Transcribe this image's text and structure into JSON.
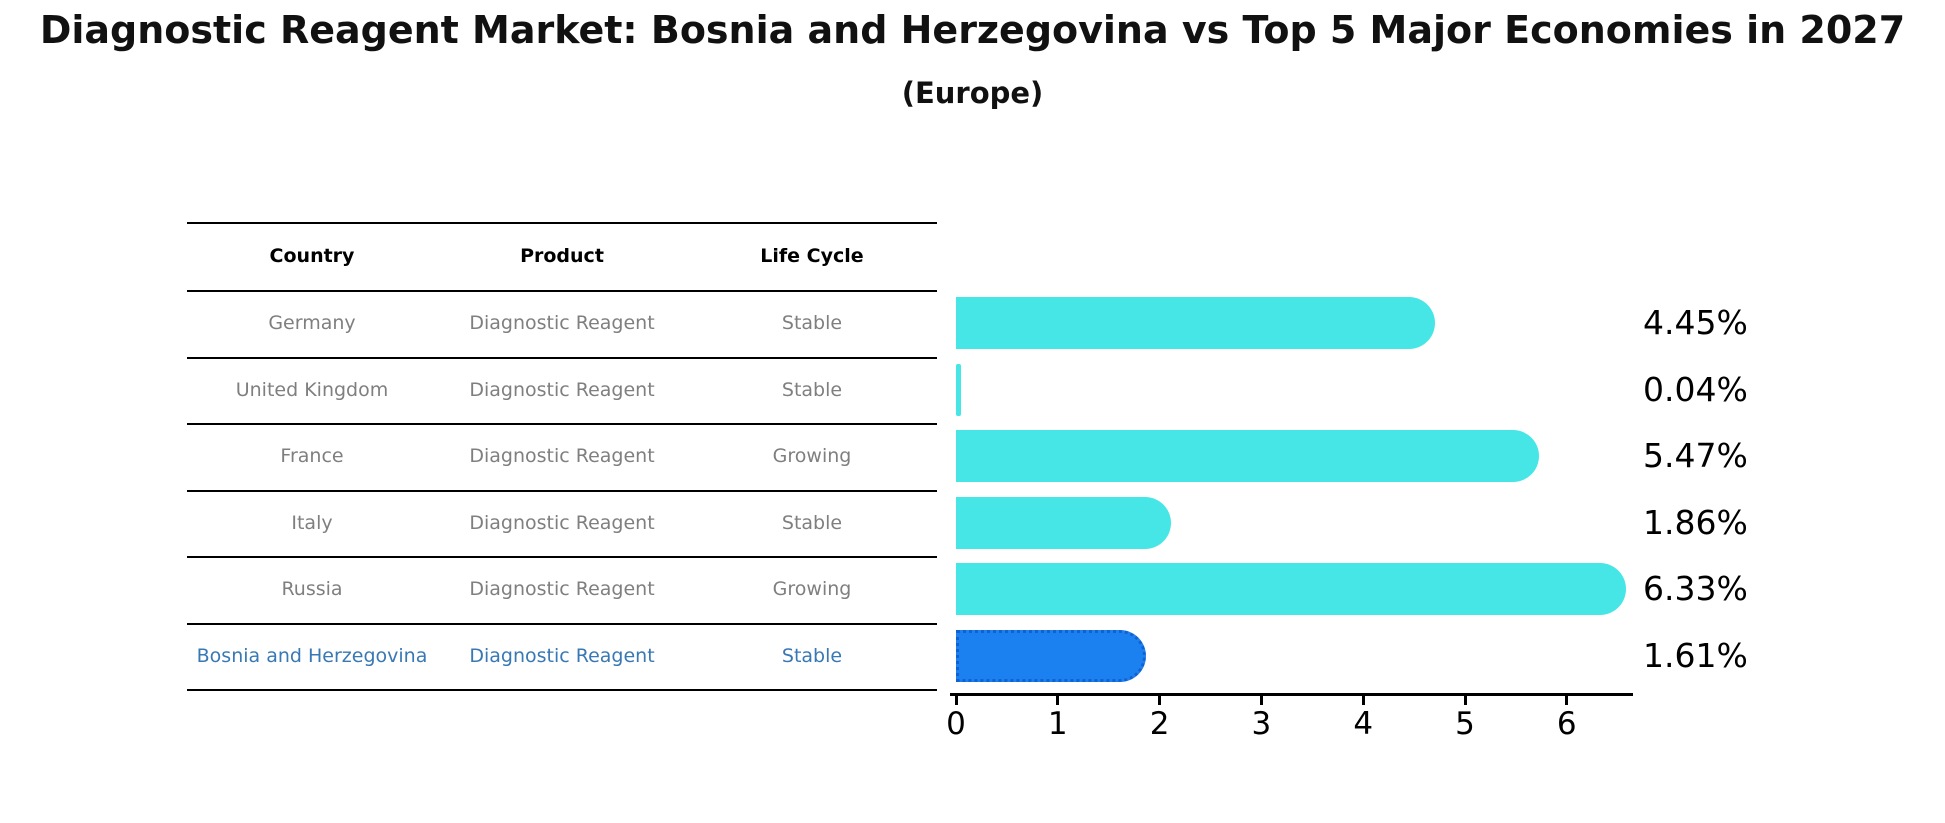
{
  "title": "Diagnostic Reagent Market: Bosnia and Herzegovina vs Top 5 Major Economies in 2027",
  "subtitle": "(Europe)",
  "table": {
    "headers": [
      "Country",
      "Product",
      "Life Cycle"
    ],
    "rows": [
      {
        "country": "Germany",
        "product": "Diagnostic Reagent",
        "life_cycle": "Stable",
        "highlight": false
      },
      {
        "country": "United Kingdom",
        "product": "Diagnostic Reagent",
        "life_cycle": "Stable",
        "highlight": false
      },
      {
        "country": "France",
        "product": "Diagnostic Reagent",
        "life_cycle": "Growing",
        "highlight": false
      },
      {
        "country": "Italy",
        "product": "Diagnostic Reagent",
        "life_cycle": "Stable",
        "highlight": false
      },
      {
        "country": "Russia",
        "product": "Diagnostic Reagent",
        "life_cycle": "Growing",
        "highlight": false
      },
      {
        "country": "Bosnia and Herzegovina",
        "product": "Diagnostic Reagent",
        "life_cycle": "Stable",
        "highlight": true
      }
    ]
  },
  "chart_data": {
    "type": "bar",
    "orientation": "horizontal",
    "title": "Diagnostic Reagent Market: Bosnia and Herzegovina vs Top 5 Major Economies in 2027",
    "subtitle": "(Europe)",
    "categories": [
      "Germany",
      "United Kingdom",
      "France",
      "Italy",
      "Russia",
      "Bosnia and Herzegovina"
    ],
    "values": [
      4.45,
      0.04,
      5.47,
      1.86,
      6.33,
      1.61
    ],
    "value_labels": [
      "4.45%",
      "0.04%",
      "5.47%",
      "1.86%",
      "6.33%",
      "1.61%"
    ],
    "x_ticks": [
      0,
      1,
      2,
      3,
      4,
      5,
      6
    ],
    "xlim": [
      0,
      6.7
    ],
    "grid": false,
    "legend": "none",
    "highlight_index": 5
  },
  "colors": {
    "bar_default": "#46E5E6",
    "bar_highlight": "#1B80F0",
    "highlight_border": "#0F62D0",
    "row_text": "#7f7f7f",
    "highlight_text": "#3878b4",
    "axis": "#000000"
  }
}
